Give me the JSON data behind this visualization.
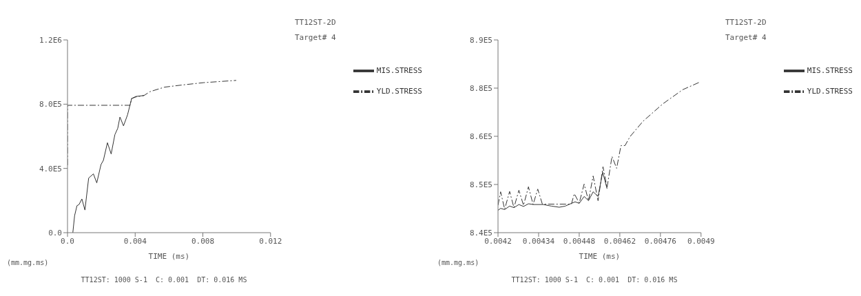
{
  "chart_data": [
    {
      "type": "line",
      "xlabel": "TIME (ms)",
      "annotations": [
        "TT12ST-2D",
        "Target# 4",
        "(mm.mg.ms)",
        "TT12ST: 1000 S-1  C: 0.001  DT: 0.016 MS"
      ],
      "xlim": [
        0,
        0.012
      ],
      "xticks": [
        {
          "value": 0,
          "label": "0.0"
        },
        0.004,
        0.008,
        0.012
      ],
      "ylim": [
        0,
        1200000
      ],
      "yticks": [
        {
          "value": 0,
          "label": "0.0"
        },
        {
          "value": 400000,
          "label": "4.0E5"
        },
        {
          "value": 800000,
          "label": "8.0E5"
        },
        {
          "value": 1200000,
          "label": "1.2E6"
        }
      ],
      "grid": false,
      "legend": "right",
      "marker": "none",
      "series": [
        {
          "name": "MIS.STRESS",
          "color": "#333333",
          "line_style": "solid",
          "x": [
            0.000315,
            0.00042,
            0.00056,
            0.00068,
            0.00085,
            0.00103,
            0.00125,
            0.00153,
            0.00173,
            0.00198,
            0.00212,
            0.00236,
            0.00258,
            0.0028,
            0.00297,
            0.0031,
            0.00331,
            0.00355,
            0.00373,
            0.00379,
            0.00404,
            0.00452
          ],
          "values": [
            0,
            106000,
            168000,
            175000,
            210000,
            141000,
            340000,
            366000,
            310000,
            424000,
            450000,
            560000,
            490000,
            610000,
            650000,
            720000,
            665000,
            734000,
            810000,
            835000,
            848000,
            854000
          ]
        },
        {
          "name": "YLD.STRESS",
          "color": "#333333",
          "line_style": "dashed",
          "x": [
            0,
            0,
            0.0037,
            0.00379,
            0.00404,
            0.00452,
            0.00488,
            0.00573,
            0.00682,
            0.00804,
            0.00997
          ],
          "values": [
            420000,
            793000,
            793000,
            835000,
            845000,
            854000,
            878000,
            906000,
            920000,
            934000,
            948000
          ]
        }
      ]
    },
    {
      "type": "line",
      "xlabel": "TIME (ms)",
      "annotations": [
        "TT12ST-2D",
        "Target# 4",
        "(mm.mg.ms)",
        "TT12ST: 1000 S-1  C: 0.001  DT: 0.016 MS"
      ],
      "xlim": [
        0.0042,
        0.0049
      ],
      "xticks": [
        0.0042,
        0.00434,
        0.00448,
        0.00462,
        0.00476,
        0.0049
      ],
      "ylim": [
        840000,
        890000
      ],
      "yticks": [
        {
          "value": 840000,
          "label": "8.4E5"
        },
        {
          "value": 852500,
          "label": "8.5E5"
        },
        {
          "value": 865000,
          "label": "8.6E5"
        },
        {
          "value": 877500,
          "label": "8.8E5"
        },
        {
          "value": 890000,
          "label": "8.9E5"
        }
      ],
      "grid": false,
      "legend": "right",
      "marker": "none",
      "series": [
        {
          "name": "MIS.STRESS",
          "color": "#333333",
          "line_style": "solid",
          "x": [
            0.0042,
            0.004209,
            0.004223,
            0.00424,
            0.004255,
            0.004272,
            0.004288,
            0.004305,
            0.004322,
            0.004356,
            0.004384,
            0.004411,
            0.004432,
            0.004453,
            0.004466,
            0.00448,
            0.004497,
            0.004512,
            0.004528,
            0.004545,
            0.004561,
            0.004576
          ],
          "values": [
            845800,
            846300,
            846000,
            846900,
            846500,
            847300,
            846800,
            847500,
            847300,
            847300,
            846900,
            846600,
            846900,
            847600,
            848000,
            847600,
            849400,
            848300,
            850600,
            849400,
            855700,
            851400
          ]
        },
        {
          "name": "YLD.STRESS",
          "color": "#333333",
          "line_style": "dashed",
          "x": [
            0.0042,
            0.004209,
            0.004223,
            0.00424,
            0.004255,
            0.004272,
            0.004288,
            0.004305,
            0.004321,
            0.004337,
            0.004353,
            0.004453,
            0.004463,
            0.00448,
            0.004497,
            0.004512,
            0.004528,
            0.004545,
            0.004562,
            0.004576,
            0.004593,
            0.004609,
            0.004624,
            0.004638,
            0.004655,
            0.0047,
            0.004768,
            0.004837,
            0.004897
          ],
          "values": [
            847100,
            850600,
            846100,
            850700,
            846500,
            851000,
            847100,
            851900,
            847300,
            851300,
            847400,
            847400,
            850100,
            847700,
            852600,
            848300,
            854700,
            848300,
            857100,
            851700,
            859800,
            856700,
            862600,
            862600,
            864900,
            868900,
            873400,
            877100,
            879100
          ]
        }
      ]
    }
  ]
}
